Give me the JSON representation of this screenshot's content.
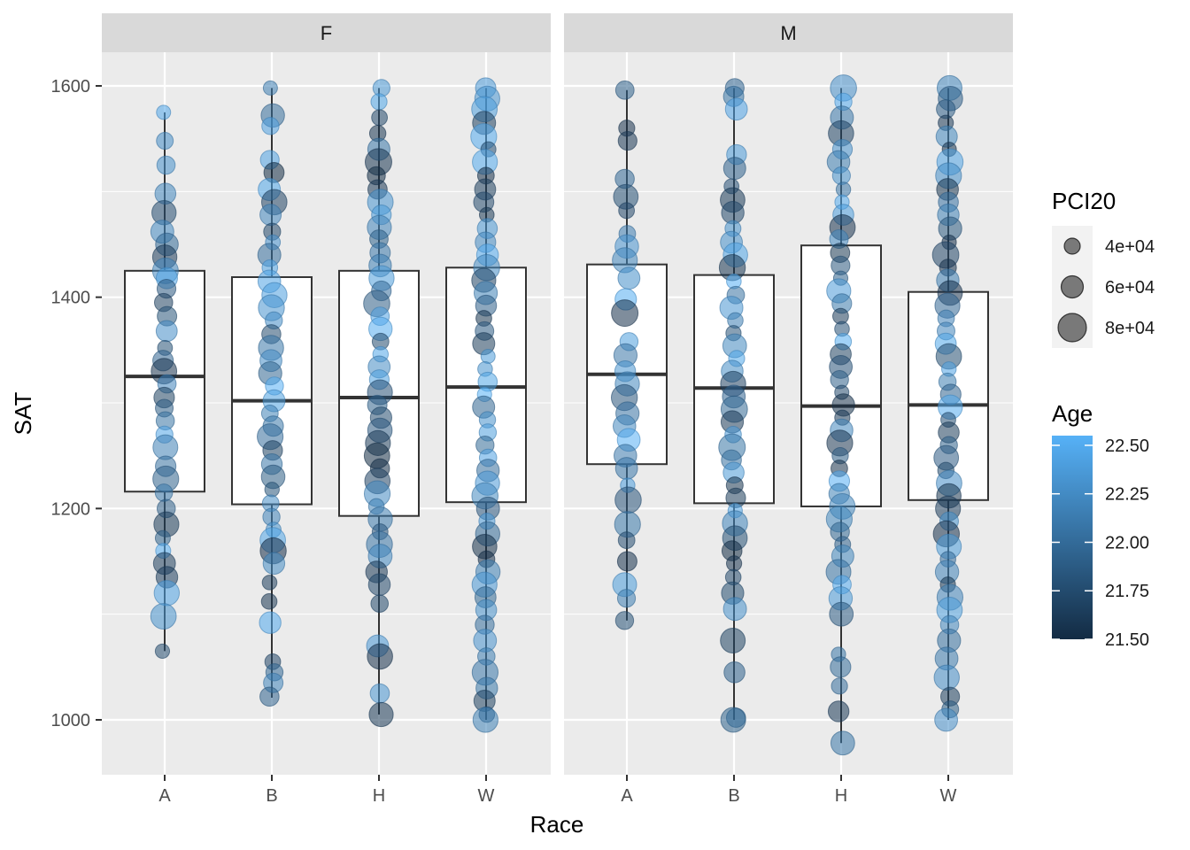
{
  "chart_data": {
    "type": "boxplot_jitter",
    "xlabel": "Race",
    "ylabel": "SAT",
    "ylim": [
      950,
      1630
    ],
    "yticks": [
      1000,
      1200,
      1400,
      1600
    ],
    "categories": [
      "A",
      "B",
      "H",
      "W"
    ],
    "colors": {
      "age_low": "#132B43",
      "age_high": "#56B1F7",
      "panel_bg": "#EBEBEB",
      "strip_bg": "#D9D9D9",
      "grid": "#FFFFFF"
    },
    "panels": [
      {
        "label": "F",
        "boxes": [
          {
            "race": "A",
            "q1": 1216,
            "median": 1325,
            "q3": 1425,
            "whisker_low": 1065,
            "whisker_high": 1575
          },
          {
            "race": "B",
            "q1": 1204,
            "median": 1302,
            "q3": 1419,
            "whisker_low": 1021,
            "whisker_high": 1598
          },
          {
            "race": "H",
            "q1": 1193,
            "median": 1305,
            "q3": 1425,
            "whisker_low": 1005,
            "whisker_high": 1598
          },
          {
            "race": "W",
            "q1": 1206,
            "median": 1315,
            "q3": 1428,
            "whisker_low": 1000,
            "whisker_high": 1598
          }
        ],
        "points": {
          "A": [
            1575,
            1548,
            1525,
            1498,
            1480,
            1462,
            1450,
            1438,
            1425,
            1418,
            1408,
            1395,
            1382,
            1368,
            1352,
            1340,
            1330,
            1318,
            1305,
            1295,
            1283,
            1270,
            1258,
            1240,
            1228,
            1215,
            1200,
            1185,
            1172,
            1160,
            1148,
            1135,
            1120,
            1098,
            1065
          ],
          "B": [
            1598,
            1572,
            1562,
            1530,
            1518,
            1502,
            1490,
            1478,
            1462,
            1452,
            1440,
            1428,
            1415,
            1402,
            1390,
            1378,
            1365,
            1352,
            1340,
            1328,
            1316,
            1302,
            1290,
            1278,
            1268,
            1255,
            1242,
            1230,
            1218,
            1205,
            1192,
            1180,
            1170,
            1160,
            1148,
            1130,
            1112,
            1092,
            1055,
            1045,
            1035,
            1022
          ],
          "H": [
            1598,
            1585,
            1570,
            1555,
            1540,
            1528,
            1515,
            1502,
            1490,
            1478,
            1466,
            1455,
            1442,
            1430,
            1418,
            1406,
            1394,
            1382,
            1370,
            1358,
            1346,
            1334,
            1322,
            1310,
            1298,
            1286,
            1274,
            1262,
            1250,
            1238,
            1226,
            1214,
            1202,
            1190,
            1178,
            1166,
            1155,
            1140,
            1128,
            1110,
            1070,
            1060,
            1025,
            1005
          ],
          "W": [
            1598,
            1588,
            1578,
            1565,
            1552,
            1540,
            1528,
            1515,
            1502,
            1490,
            1478,
            1465,
            1452,
            1440,
            1428,
            1416,
            1404,
            1392,
            1380,
            1368,
            1356,
            1344,
            1332,
            1320,
            1308,
            1296,
            1284,
            1272,
            1260,
            1248,
            1236,
            1224,
            1212,
            1200,
            1188,
            1176,
            1164,
            1152,
            1140,
            1128,
            1116,
            1104,
            1090,
            1075,
            1060,
            1045,
            1030,
            1018,
            1005,
            1000
          ]
        }
      },
      {
        "label": "M",
        "boxes": [
          {
            "race": "A",
            "q1": 1242,
            "median": 1327,
            "q3": 1431,
            "whisker_low": 1094,
            "whisker_high": 1596
          },
          {
            "race": "B",
            "q1": 1205,
            "median": 1314,
            "q3": 1421,
            "whisker_low": 1000,
            "whisker_high": 1598
          },
          {
            "race": "H",
            "q1": 1202,
            "median": 1297,
            "q3": 1449,
            "whisker_low": 978,
            "whisker_high": 1598
          },
          {
            "race": "W",
            "q1": 1208,
            "median": 1298,
            "q3": 1405,
            "whisker_low": 1000,
            "whisker_high": 1598
          }
        ],
        "points": {
          "A": [
            1596,
            1560,
            1548,
            1512,
            1495,
            1482,
            1460,
            1448,
            1435,
            1418,
            1398,
            1385,
            1358,
            1345,
            1330,
            1318,
            1305,
            1290,
            1278,
            1265,
            1250,
            1238,
            1222,
            1208,
            1185,
            1170,
            1150,
            1128,
            1115,
            1094
          ],
          "B": [
            1598,
            1590,
            1578,
            1535,
            1522,
            1505,
            1492,
            1480,
            1465,
            1452,
            1440,
            1428,
            1415,
            1402,
            1390,
            1378,
            1366,
            1354,
            1342,
            1330,
            1318,
            1306,
            1294,
            1282,
            1270,
            1258,
            1246,
            1234,
            1222,
            1210,
            1198,
            1186,
            1172,
            1160,
            1148,
            1135,
            1120,
            1105,
            1075,
            1045,
            1002,
            1000
          ],
          "H": [
            1598,
            1585,
            1570,
            1555,
            1540,
            1528,
            1515,
            1502,
            1490,
            1478,
            1466,
            1455,
            1442,
            1430,
            1418,
            1406,
            1394,
            1382,
            1370,
            1358,
            1346,
            1334,
            1322,
            1310,
            1298,
            1286,
            1274,
            1262,
            1250,
            1238,
            1226,
            1214,
            1202,
            1190,
            1178,
            1166,
            1155,
            1140,
            1128,
            1115,
            1100,
            1062,
            1050,
            1032,
            1008,
            978
          ],
          "W": [
            1598,
            1588,
            1578,
            1565,
            1552,
            1540,
            1528,
            1515,
            1502,
            1490,
            1478,
            1465,
            1452,
            1440,
            1428,
            1416,
            1404,
            1392,
            1380,
            1368,
            1356,
            1344,
            1332,
            1320,
            1308,
            1296,
            1284,
            1272,
            1260,
            1248,
            1236,
            1224,
            1212,
            1200,
            1188,
            1176,
            1164,
            1152,
            1140,
            1128,
            1116,
            1104,
            1090,
            1075,
            1058,
            1040,
            1022,
            1010,
            1000
          ]
        }
      }
    ],
    "legend_size": {
      "title": "PCI20",
      "labels": [
        "4e+04",
        "6e+04",
        "8e+04"
      ],
      "values": [
        40000,
        60000,
        80000
      ]
    },
    "legend_color": {
      "title": "Age",
      "labels": [
        "22.50",
        "22.25",
        "22.00",
        "21.75",
        "21.50"
      ],
      "values": [
        22.5,
        22.25,
        22.0,
        21.75,
        21.5
      ],
      "range": [
        21.5,
        22.55
      ]
    }
  }
}
